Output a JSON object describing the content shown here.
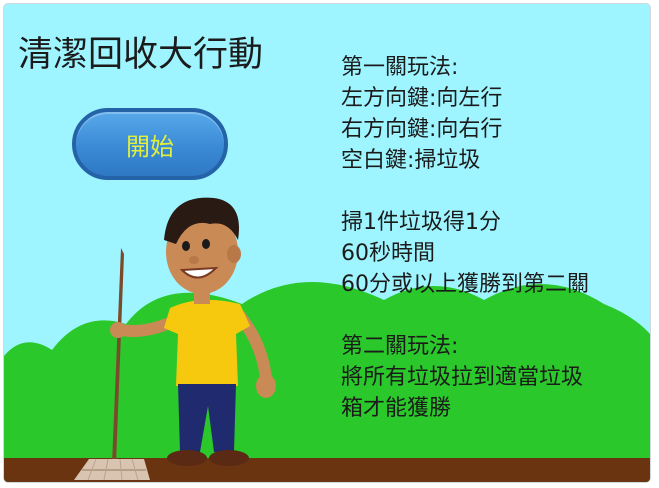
{
  "game": {
    "title": "清潔回收大行動",
    "start_label": "開始"
  },
  "instructions": {
    "level1": [
      "第一關玩法:",
      "左方向鍵:向左行",
      "右方向鍵:向右行",
      "空白鍵:掃垃圾"
    ],
    "scoring": [
      "掃1件垃圾得1分",
      "60秒時間",
      "60分或以上獲勝到第二關"
    ],
    "level2": [
      "第二關玩法:",
      "將所有垃圾拉到適當垃圾",
      "箱才能獲勝"
    ]
  },
  "colors": {
    "sky": "#9ef5ff",
    "hills": "#2ac82a",
    "ground": "#6b3410",
    "button": "#3a8ad6",
    "button_text": "#e2f03a",
    "shirt": "#f6c90e"
  }
}
